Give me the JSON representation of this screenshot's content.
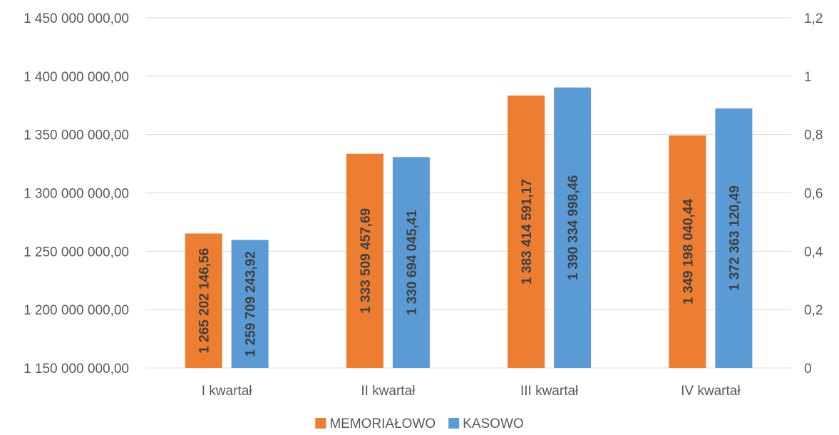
{
  "chart_data": {
    "type": "bar",
    "categories": [
      "I kwartał",
      "II kwartał",
      "III kwartał",
      "IV kwartał"
    ],
    "series": [
      {
        "name": "MEMORIAŁOWO",
        "color": "#ED7D31",
        "values": [
          1265202146.56,
          1333509457.69,
          1383414591.17,
          1349198040.44
        ],
        "labels": [
          "1 265 202 146,56",
          "1 333 509 457,69",
          "1 383 414 591,17",
          "1 349 198 040,44"
        ]
      },
      {
        "name": "KASOWO",
        "color": "#5B9BD5",
        "values": [
          1259709243.92,
          1330694045.41,
          1390334998.46,
          1372363120.49
        ],
        "labels": [
          "1 259 709 243,92",
          "1 330 694 045,41",
          "1 390 334 998,46",
          "1 372 363 120,49"
        ]
      }
    ],
    "ylim": [
      1150000000,
      1450000000
    ],
    "yticks": [
      1150000000,
      1200000000,
      1250000000,
      1300000000,
      1350000000,
      1400000000,
      1450000000
    ],
    "ytick_labels": [
      "1 150 000 000,00",
      "1 200 000 000,00",
      "1 250 000 000,00",
      "1 300 000 000,00",
      "1 350 000 000,00",
      "1 400 000 000,00",
      "1 450 000 000,00"
    ],
    "y2lim": [
      0,
      1.2
    ],
    "y2ticks": [
      0,
      0.2,
      0.4,
      0.6,
      0.8,
      1,
      1.2
    ],
    "y2tick_labels": [
      "0",
      "0,2",
      "0,4",
      "0,6",
      "0,8",
      "1",
      "1,2"
    ],
    "grid": true,
    "legend_position": "bottom",
    "gridline_color": "#D9D9D9"
  }
}
